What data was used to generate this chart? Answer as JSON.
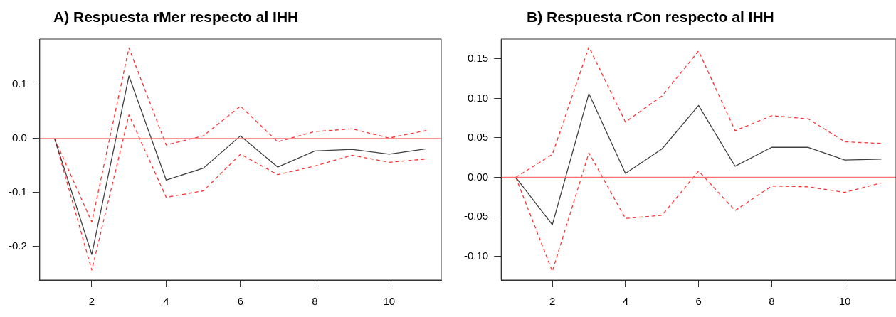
{
  "chart_data": [
    {
      "type": "line",
      "title": "A) Respuesta rMer respecto al IHH",
      "x": [
        1,
        2,
        3,
        4,
        5,
        6,
        7,
        8,
        9,
        10,
        11
      ],
      "xlim": [
        0.6,
        11.4
      ],
      "xticks": [
        2,
        4,
        6,
        8,
        10
      ],
      "ylim": [
        -0.2625,
        0.1845
      ],
      "yticks": [
        -0.2,
        -0.1,
        {
          "value": 0,
          "label": "0.0"
        },
        0.1
      ],
      "grid": false,
      "legend": false,
      "marker": "none",
      "series": [
        {
          "color": "#404040",
          "line_style": "solid",
          "values": [
            0,
            -0.215,
            0.116,
            -0.077,
            -0.055,
            0.005,
            -0.053,
            -0.023,
            -0.02,
            -0.029,
            -0.019
          ]
        },
        {
          "color": "#ff3333",
          "line_style": "dashed",
          "values": [
            0,
            -0.155,
            0.168,
            -0.012,
            0.005,
            0.06,
            -0.006,
            0.013,
            0.018,
            0.001,
            0.015
          ]
        },
        {
          "color": "#ff3333",
          "line_style": "dashed",
          "values": [
            0,
            -0.244,
            0.044,
            -0.109,
            -0.097,
            -0.029,
            -0.067,
            -0.051,
            -0.031,
            -0.044,
            -0.038
          ]
        }
      ],
      "ref_lines": [
        {
          "axis": "y",
          "value": 0,
          "color": "#ff7070",
          "line_style": "solid"
        }
      ]
    },
    {
      "type": "line",
      "title": "B) Respuesta rCon respecto al IHH",
      "x": [
        1,
        2,
        3,
        4,
        5,
        6,
        7,
        8,
        9,
        10,
        11
      ],
      "xlim": [
        0.6,
        11.4
      ],
      "xticks": [
        2,
        4,
        6,
        8,
        10
      ],
      "ylim": [
        -0.13,
        0.175
      ],
      "yticks": [
        {
          "value": -0.1,
          "label": "-0.10"
        },
        -0.05,
        {
          "value": 0,
          "label": "0.00"
        },
        0.05,
        {
          "value": 0.1,
          "label": "0.10"
        },
        0.15
      ],
      "grid": false,
      "legend": false,
      "marker": "none",
      "series": [
        {
          "color": "#404040",
          "line_style": "solid",
          "values": [
            0,
            -0.06,
            0.106,
            0.005,
            0.036,
            0.091,
            0.014,
            0.038,
            0.038,
            0.022,
            0.023
          ]
        },
        {
          "color": "#ff3333",
          "line_style": "dashed",
          "values": [
            0,
            0.029,
            0.165,
            0.07,
            0.103,
            0.16,
            0.059,
            0.078,
            0.074,
            0.045,
            0.043
          ]
        },
        {
          "color": "#ff3333",
          "line_style": "dashed",
          "values": [
            0,
            -0.119,
            0.031,
            -0.052,
            -0.048,
            0.008,
            -0.042,
            -0.011,
            -0.012,
            -0.019,
            -0.007
          ]
        }
      ],
      "ref_lines": [
        {
          "axis": "y",
          "value": 0,
          "color": "#ff7070",
          "line_style": "solid"
        }
      ]
    }
  ]
}
